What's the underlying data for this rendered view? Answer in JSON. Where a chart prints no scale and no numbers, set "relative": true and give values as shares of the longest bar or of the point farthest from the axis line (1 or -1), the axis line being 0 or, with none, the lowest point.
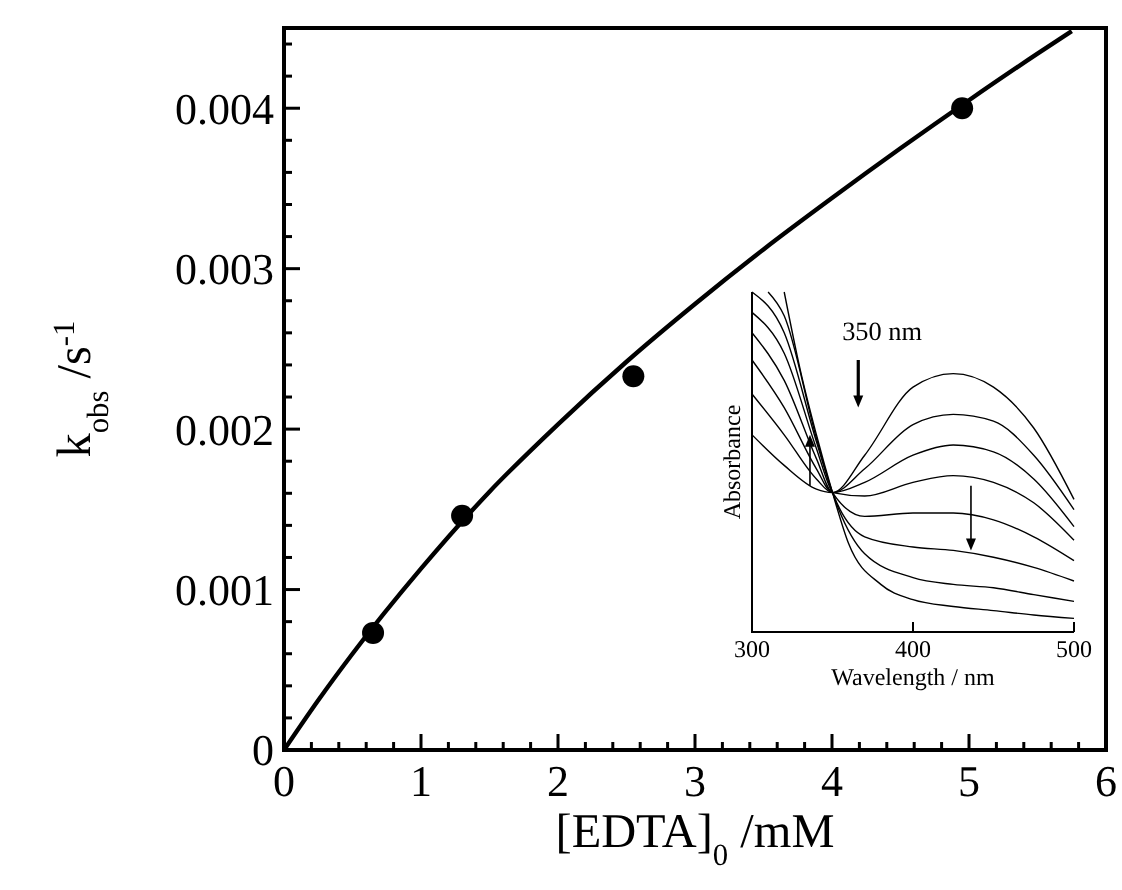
{
  "chart_data": [
    {
      "type": "scatter",
      "xlabel": "[EDTA]$_{0}$ /mM",
      "ylabel": "k$_{obs}$ /s$^{-1}$",
      "xlim": [
        0,
        6
      ],
      "ylim": [
        0,
        0.0045
      ],
      "xticks": [
        0,
        1,
        2,
        3,
        4,
        5,
        6,
        {
          "value": 0.2,
          "label": null
        },
        {
          "value": 0.4,
          "label": null
        },
        {
          "value": 0.6,
          "label": null
        },
        {
          "value": 0.8,
          "label": null
        },
        {
          "value": 1.2,
          "label": null
        },
        {
          "value": 1.4,
          "label": null
        },
        {
          "value": 1.6,
          "label": null
        },
        {
          "value": 1.8,
          "label": null
        },
        {
          "value": 2.2,
          "label": null
        },
        {
          "value": 2.4,
          "label": null
        },
        {
          "value": 2.6,
          "label": null
        },
        {
          "value": 2.8,
          "label": null
        },
        {
          "value": 3.2,
          "label": null
        },
        {
          "value": 3.4,
          "label": null
        },
        {
          "value": 3.6,
          "label": null
        },
        {
          "value": 3.8,
          "label": null
        },
        {
          "value": 4.2,
          "label": null
        },
        {
          "value": 4.4,
          "label": null
        },
        {
          "value": 4.6,
          "label": null
        },
        {
          "value": 4.8,
          "label": null
        },
        {
          "value": 5.2,
          "label": null
        },
        {
          "value": 5.4,
          "label": null
        },
        {
          "value": 5.6,
          "label": null
        },
        {
          "value": 5.8,
          "label": null
        }
      ],
      "yticks": [
        0,
        0.001,
        0.002,
        0.003,
        0.004,
        {
          "value": 0.0002,
          "label": null
        },
        {
          "value": 0.0004,
          "label": null
        },
        {
          "value": 0.0006,
          "label": null
        },
        {
          "value": 0.0008,
          "label": null
        },
        {
          "value": 0.0012,
          "label": null
        },
        {
          "value": 0.0014,
          "label": null
        },
        {
          "value": 0.0016,
          "label": null
        },
        {
          "value": 0.0018,
          "label": null
        },
        {
          "value": 0.0022,
          "label": null
        },
        {
          "value": 0.0024,
          "label": null
        },
        {
          "value": 0.0026,
          "label": null
        },
        {
          "value": 0.0028,
          "label": null
        },
        {
          "value": 0.0032,
          "label": null
        },
        {
          "value": 0.0034,
          "label": null
        },
        {
          "value": 0.0036,
          "label": null
        },
        {
          "value": 0.0038,
          "label": null
        },
        {
          "value": 0.0042,
          "label": null
        },
        {
          "value": 0.0044,
          "label": null
        }
      ],
      "series": [
        {
          "color": "#000000",
          "marker": "circle",
          "x": [
            0.65,
            1.3,
            2.55,
            4.95
          ],
          "values": [
            0.00073,
            0.00146,
            0.00233,
            0.004
          ]
        },
        {
          "type": "line",
          "color": "#000000",
          "x": [
            0,
            0.25,
            0.5,
            1,
            1.5,
            2,
            2.5,
            3,
            3.5,
            4,
            4.5,
            5,
            5.5,
            5.75
          ],
          "values": [
            0,
            0.00031,
            0.0006,
            0.00113,
            0.00161,
            0.00203,
            0.00242,
            0.00278,
            0.00312,
            0.00344,
            0.00375,
            0.00405,
            0.00434,
            0.00448
          ]
        }
      ]
    },
    {
      "type": "line",
      "relative": true,
      "xlabel": "Wavelength / nm",
      "ylabel": "Absorbance",
      "xlim": [
        300,
        500
      ],
      "xticks": [
        300,
        400,
        500
      ],
      "annotations": [
        "350 nm"
      ],
      "series": [
        {
          "color": "#000000",
          "x": [
            300,
            320,
            340,
            350,
            370,
            400,
            425,
            450,
            475,
            500
          ],
          "values": [
            0.58,
            0.49,
            0.42,
            0.41,
            0.52,
            0.72,
            0.76,
            0.72,
            0.6,
            0.39
          ]
        },
        {
          "color": "#000000",
          "x": [
            300,
            320,
            340,
            350,
            370,
            400,
            425,
            450,
            475,
            500
          ],
          "values": [
            0.7,
            0.58,
            0.45,
            0.41,
            0.48,
            0.61,
            0.64,
            0.62,
            0.52,
            0.36
          ]
        },
        {
          "color": "#000000",
          "x": [
            300,
            320,
            340,
            350,
            370,
            400,
            425,
            450,
            475,
            500
          ],
          "values": [
            0.8,
            0.66,
            0.48,
            0.41,
            0.44,
            0.52,
            0.55,
            0.53,
            0.45,
            0.31
          ]
        },
        {
          "color": "#000000",
          "x": [
            300,
            320,
            340,
            350,
            370,
            400,
            425,
            450,
            475,
            500
          ],
          "values": [
            0.88,
            0.74,
            0.51,
            0.41,
            0.4,
            0.44,
            0.46,
            0.44,
            0.38,
            0.27
          ]
        },
        {
          "color": "#000000",
          "x": [
            300,
            320,
            340,
            350,
            370,
            400,
            425,
            450,
            475,
            500
          ],
          "values": [
            0.94,
            0.82,
            0.54,
            0.41,
            0.34,
            0.35,
            0.35,
            0.33,
            0.28,
            0.21
          ]
        },
        {
          "color": "#000000",
          "x": [
            300,
            320,
            340,
            350,
            370,
            400,
            425,
            450,
            475,
            500
          ],
          "values": [
            1,
            0.88,
            0.56,
            0.41,
            0.28,
            0.25,
            0.24,
            0.22,
            0.19,
            0.15
          ]
        },
        {
          "color": "#000000",
          "x": [
            310,
            320,
            340,
            350,
            370,
            400,
            425,
            450,
            475,
            500
          ],
          "values": [
            1,
            0.93,
            0.57,
            0.41,
            0.23,
            0.16,
            0.14,
            0.13,
            0.11,
            0.09
          ]
        },
        {
          "color": "#000000",
          "x": [
            320,
            330,
            340,
            350,
            360,
            380,
            400,
            425,
            450,
            475,
            500
          ],
          "values": [
            1,
            0.77,
            0.58,
            0.41,
            0.26,
            0.14,
            0.095,
            0.075,
            0.063,
            0.05,
            0.04
          ]
        }
      ]
    }
  ]
}
